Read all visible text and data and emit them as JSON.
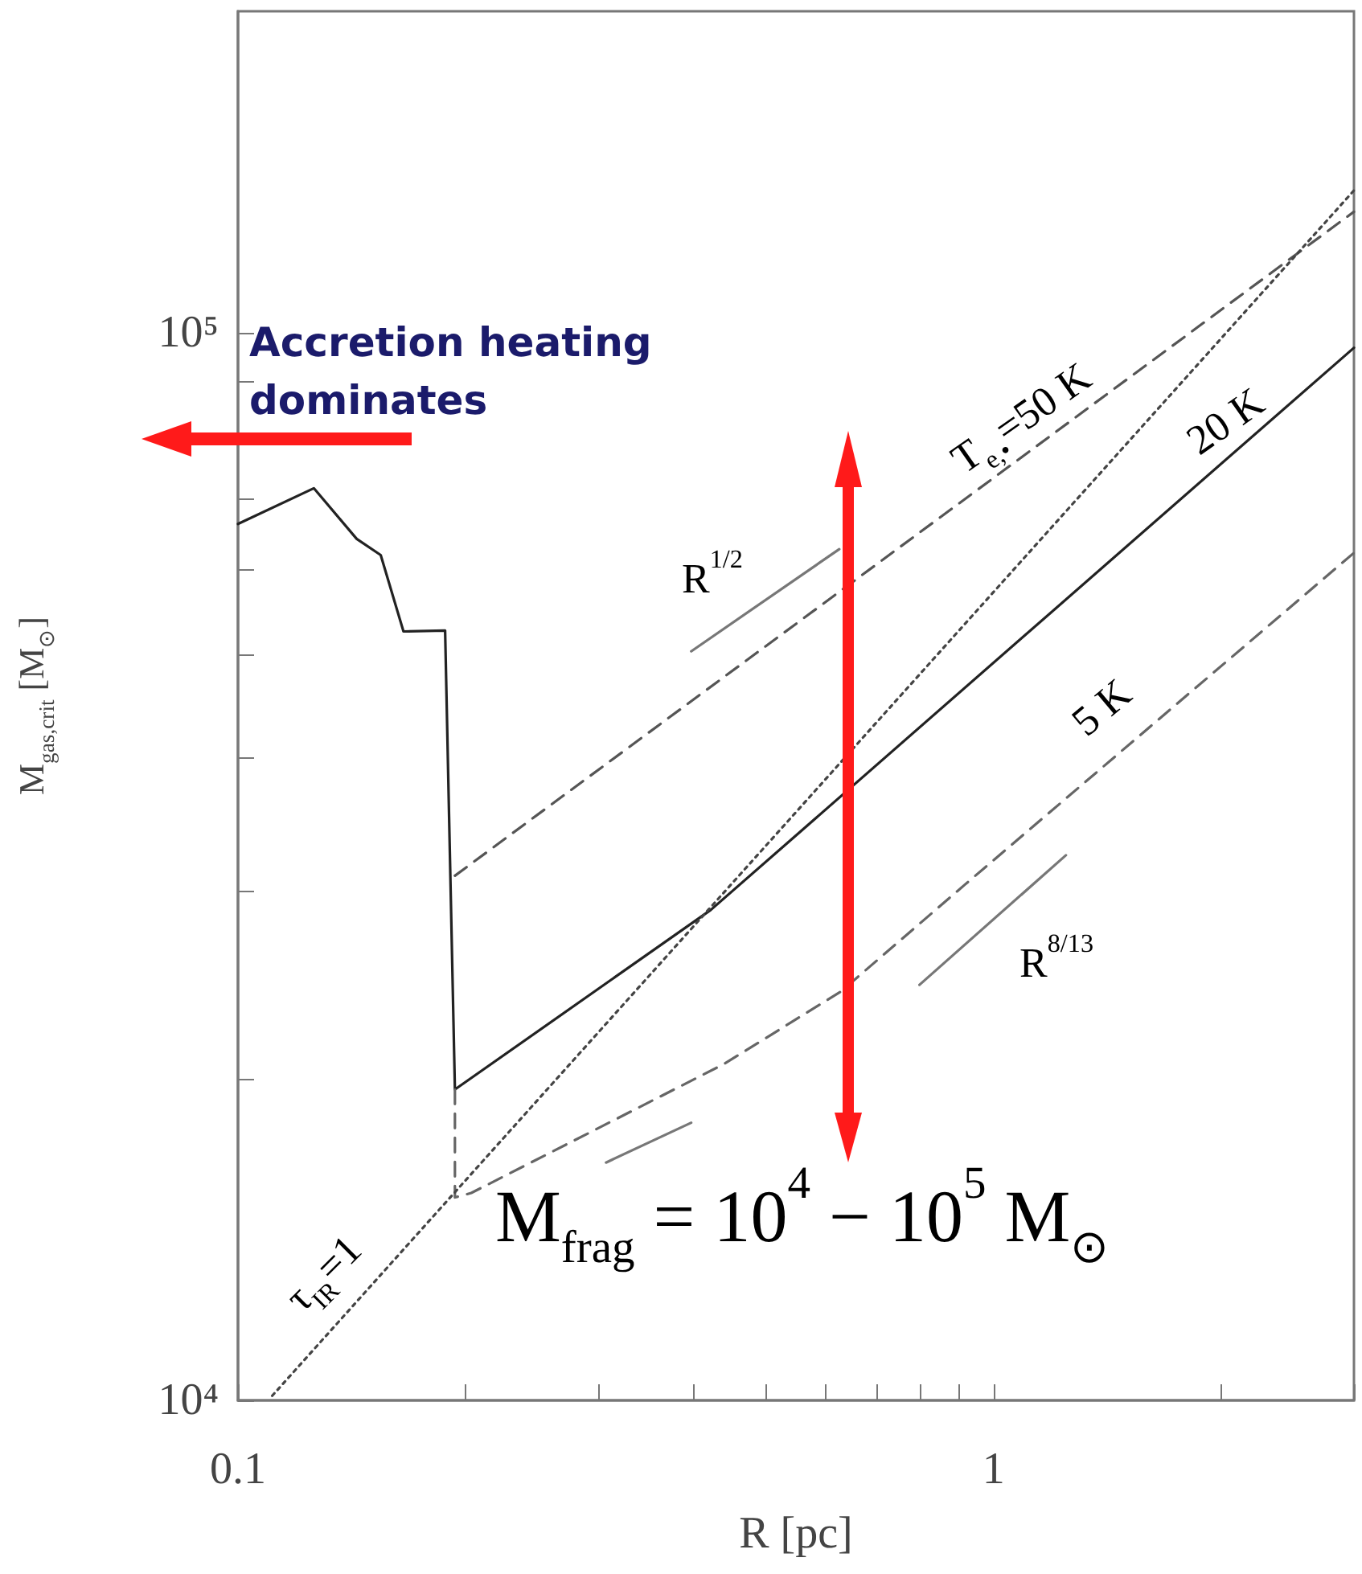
{
  "chart_data": {
    "type": "line",
    "xlabel": "R [pc]",
    "ylabel": "M$_{gas,crit}$ [M$_{⊙}$]",
    "log": "xy",
    "xlim": [
      0.1,
      3
    ],
    "ylim": [
      10000,
      200000
    ],
    "xticks": [
      0.1,
      {
        "value": 0.2,
        "label": null
      },
      {
        "value": 0.3,
        "label": null
      },
      {
        "value": 0.4,
        "label": null
      },
      {
        "value": 0.5,
        "label": null
      },
      {
        "value": 0.6,
        "label": null
      },
      {
        "value": 0.7,
        "label": null
      },
      {
        "value": 0.8,
        "label": null
      },
      {
        "value": 0.9,
        "label": null
      },
      1,
      {
        "value": 2,
        "label": null
      },
      {
        "value": 3,
        "label": null
      }
    ],
    "yticks": [
      {
        "value": 10000,
        "label": "10⁴"
      },
      {
        "value": 20000,
        "label": null
      },
      {
        "value": 30000,
        "label": null
      },
      {
        "value": 40000,
        "label": null
      },
      {
        "value": 50000,
        "label": null
      },
      {
        "value": 60000,
        "label": null
      },
      {
        "value": 70000,
        "label": null
      },
      {
        "value": 80000,
        "label": null
      },
      {
        "value": 90000,
        "label": null
      },
      {
        "value": 100000,
        "label": "10⁵"
      }
    ],
    "marker": "none",
    "series": [
      {
        "color": "#222222",
        "line_style": "solid",
        "x": [
          0.1,
          0.126,
          0.1436,
          0.1545,
          0.1656,
          0.188,
          0.1937,
          0.4225,
          3
        ],
        "values": [
          66200,
          71500,
          64100,
          61900,
          52500,
          52600,
          19550,
          28800,
          96800
        ]
      },
      {
        "color": "#555555",
        "line_style": "dashed",
        "x": [
          0.1937,
          3
        ],
        "values": [
          31000,
          129800
        ]
      },
      {
        "color": "#666666",
        "line_style": "dashed",
        "x": [
          0.1937,
          0.1937,
          0.2036,
          0.4395,
          0.628,
          0.916,
          3
        ],
        "values": [
          19550,
          15490,
          15640,
          20650,
          24150,
          30400,
          62200
        ]
      },
      {
        "color": "#444444",
        "line_style": "dotted",
        "x": [
          0.111,
          3
        ],
        "values": [
          10100,
          135900
        ]
      },
      {
        "color": "#777777",
        "line_style": "solid",
        "x": [
          0.398,
          0.625
        ],
        "values": [
          50300,
          62700
        ]
      },
      {
        "color": "#777777",
        "line_style": "solid",
        "x": [
          0.798,
          1.247
        ],
        "values": [
          24500,
          32400
        ]
      },
      {
        "color": "#777777",
        "line_style": "solid",
        "x": [
          0.307,
          0.398
        ],
        "values": [
          16700,
          18200
        ]
      }
    ],
    "annotations": [
      "Accretion heating dominates",
      "M$_{frag}$ = 10$^{4}$ − 10$^{5}$ M$_{⊙}$",
      "T$_{e,•}$=50 K",
      "20 K",
      "5 K",
      "τ$_{IR}$=1",
      "R$^{1/2}$",
      "R$^{8/13}$"
    ]
  }
}
